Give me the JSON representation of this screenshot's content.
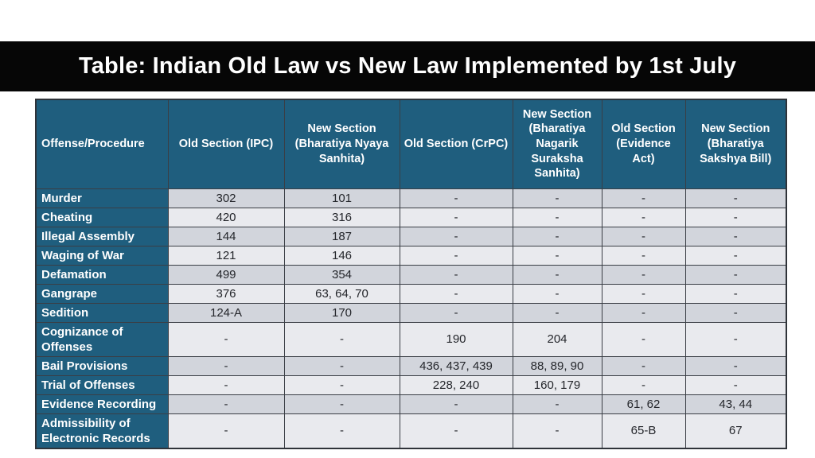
{
  "title": "Table: Indian Old Law vs New Law Implemented by 1st July",
  "colors": {
    "title_bar_bg": "#060606",
    "title_text": "#ffffff",
    "header_bg": "#1f5e7e",
    "row_label_bg": "#1f5e7e",
    "row_alt_dark": "#d2d5dc",
    "row_alt_light": "#e9eaee",
    "border": "#3a3e45",
    "cell_text": "#24262b"
  },
  "table": {
    "columns": [
      "Offense/Procedure",
      "Old Section (IPC)",
      "New Section (Bharatiya Nyaya Sanhita)",
      "Old Section (CrPC)",
      "New Section (Bharatiya Nagarik Suraksha Sanhita)",
      "Old Section (Evidence Act)",
      "New Section (Bharatiya Sakshya Bill)"
    ],
    "rows": [
      {
        "label": "Murder",
        "values": [
          "302",
          "101",
          "-",
          "-",
          "-",
          "-"
        ]
      },
      {
        "label": "Cheating",
        "values": [
          "420",
          "316",
          "-",
          "-",
          "-",
          "-"
        ]
      },
      {
        "label": "Illegal Assembly",
        "values": [
          "144",
          "187",
          "-",
          "-",
          "-",
          "-"
        ]
      },
      {
        "label": "Waging of War",
        "values": [
          "121",
          "146",
          "-",
          "-",
          "-",
          "-"
        ]
      },
      {
        "label": "Defamation",
        "values": [
          "499",
          "354",
          "-",
          "-",
          "-",
          "-"
        ]
      },
      {
        "label": "Gangrape",
        "values": [
          "376",
          "63, 64, 70",
          "-",
          "-",
          "-",
          "-"
        ]
      },
      {
        "label": "Sedition",
        "values": [
          "124-A",
          "170",
          "-",
          "-",
          "-",
          "-"
        ]
      },
      {
        "label": "Cognizance of Offenses",
        "values": [
          "-",
          "-",
          "190",
          "204",
          "-",
          "-"
        ]
      },
      {
        "label": "Bail Provisions",
        "values": [
          "-",
          "-",
          "436, 437, 439",
          "88, 89, 90",
          "-",
          "-"
        ]
      },
      {
        "label": "Trial of Offenses",
        "values": [
          "-",
          "-",
          "228, 240",
          "160, 179",
          "-",
          "-"
        ]
      },
      {
        "label": "Evidence Recording",
        "values": [
          "-",
          "-",
          "-",
          "-",
          "61, 62",
          "43, 44"
        ]
      },
      {
        "label": "Admissibility of Electronic Records",
        "values": [
          "-",
          "-",
          "-",
          "-",
          "65-B",
          "67"
        ]
      }
    ]
  }
}
